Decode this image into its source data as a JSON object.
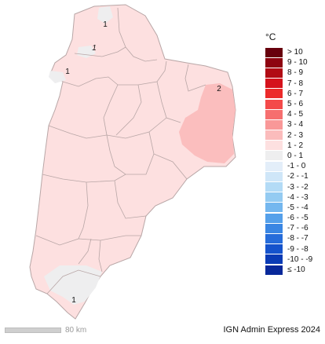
{
  "legend": {
    "unit": "°C",
    "items": [
      {
        "label": "> 10",
        "color": "#67000d"
      },
      {
        "label": "9 - 10",
        "color": "#8e0410"
      },
      {
        "label": "8 - 9",
        "color": "#b10b14"
      },
      {
        "label": "7 - 8",
        "color": "#d5121c"
      },
      {
        "label": "6 - 7",
        "color": "#ec2a2a"
      },
      {
        "label": "5 - 6",
        "color": "#f44a4a"
      },
      {
        "label": "4 - 5",
        "color": "#f66f6f"
      },
      {
        "label": "3 - 4",
        "color": "#f99898"
      },
      {
        "label": "2 - 3",
        "color": "#fbbcbc"
      },
      {
        "label": "1 - 2",
        "color": "#fde0e0"
      },
      {
        "label": "0 - 1",
        "color": "#eeeeef"
      },
      {
        "label": "-1 - 0",
        "color": "#e3eef9"
      },
      {
        "label": "-2 - -1",
        "color": "#cfe6f8"
      },
      {
        "label": "-3 - -2",
        "color": "#b3dbf6"
      },
      {
        "label": "-4 - -3",
        "color": "#94cbf2"
      },
      {
        "label": "-5 - -4",
        "color": "#74b7ef"
      },
      {
        "label": "-6 - -5",
        "color": "#55a0ea"
      },
      {
        "label": "-7 - -6",
        "color": "#3a86e3"
      },
      {
        "label": "-8 - -7",
        "color": "#266cda"
      },
      {
        "label": "-9 - -8",
        "color": "#1553cc"
      },
      {
        "label": "-10 - -9",
        "color": "#0a3bb5"
      },
      {
        "label": "≤ -10",
        "color": "#08289a"
      }
    ]
  },
  "map": {
    "contour_labels": [
      "1",
      "1",
      "1",
      "2",
      "1"
    ],
    "colors": {
      "base": "#fde0e0",
      "warm": "#fbbcbc",
      "cool": "#eeeeef",
      "borders": "#b8a6a6"
    }
  },
  "scalebar": {
    "label": "80 km"
  },
  "credit": "IGN Admin Express 2024"
}
